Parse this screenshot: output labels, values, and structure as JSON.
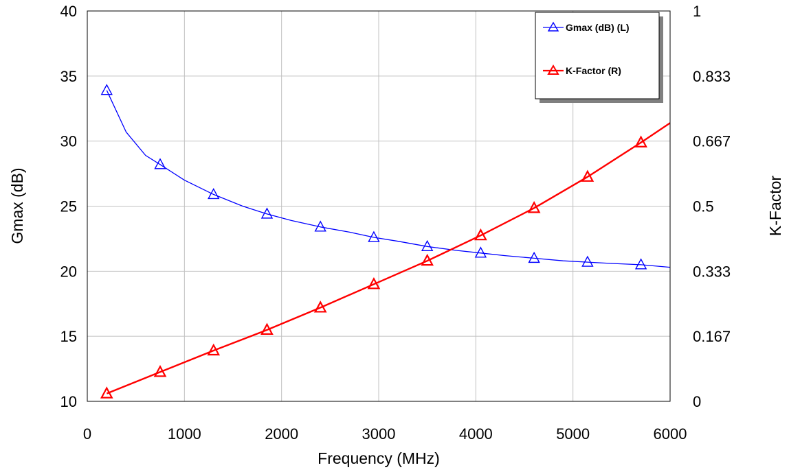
{
  "chart_data": {
    "type": "line",
    "xlabel": "Frequency (MHz)",
    "ylabel": "Gmax (dB)",
    "y2label": "K-Factor",
    "xlim": [
      0,
      6000
    ],
    "ylim": [
      10,
      40
    ],
    "y2lim": [
      0,
      1
    ],
    "x_ticks": [
      "0",
      "1000",
      "2000",
      "3000",
      "4000",
      "5000",
      "6000"
    ],
    "y_ticks": [
      "10",
      "15",
      "20",
      "25",
      "30",
      "35",
      "40"
    ],
    "y2_ticks": [
      "0",
      "0.167",
      "0.333",
      "0.5",
      "0.667",
      "0.833",
      "1"
    ],
    "grid": true,
    "legend_position": "top-right",
    "series": [
      {
        "name": "Gmax (dB) (L)",
        "axis": "left",
        "color": "#0000ff",
        "marker": "triangle",
        "x": [
          200,
          400,
          600,
          750,
          1000,
          1300,
          1600,
          1850,
          2100,
          2400,
          2700,
          2950,
          3200,
          3500,
          3800,
          4050,
          4300,
          4600,
          4900,
          5150,
          5400,
          5700,
          6000
        ],
        "y": [
          33.9,
          30.7,
          28.9,
          28.2,
          27.0,
          25.9,
          25.0,
          24.4,
          23.9,
          23.4,
          23.0,
          22.6,
          22.3,
          21.9,
          21.6,
          21.4,
          21.2,
          21.0,
          20.8,
          20.7,
          20.6,
          20.5,
          20.3
        ],
        "marker_x": [
          200,
          750,
          1300,
          1850,
          2400,
          2950,
          3500,
          4050,
          4600,
          5150,
          5700
        ],
        "marker_y": [
          33.9,
          28.2,
          25.9,
          24.4,
          23.4,
          22.6,
          21.9,
          21.4,
          21.0,
          20.7,
          20.5
        ]
      },
      {
        "name": "K-Factor (R)",
        "axis": "right",
        "color": "#ff0000",
        "marker": "triangle",
        "x": [
          200,
          750,
          1300,
          1850,
          2400,
          2950,
          3500,
          4050,
          4600,
          5150,
          5700,
          6000
        ],
        "y": [
          0.02,
          0.075,
          0.13,
          0.183,
          0.24,
          0.3,
          0.36,
          0.425,
          0.495,
          0.575,
          0.663,
          0.713
        ],
        "marker_x": [
          200,
          750,
          1300,
          1850,
          2400,
          2950,
          3500,
          4050,
          4600,
          5150,
          5700
        ],
        "marker_y": [
          0.02,
          0.075,
          0.13,
          0.183,
          0.24,
          0.3,
          0.36,
          0.425,
          0.495,
          0.575,
          0.663
        ]
      }
    ]
  }
}
